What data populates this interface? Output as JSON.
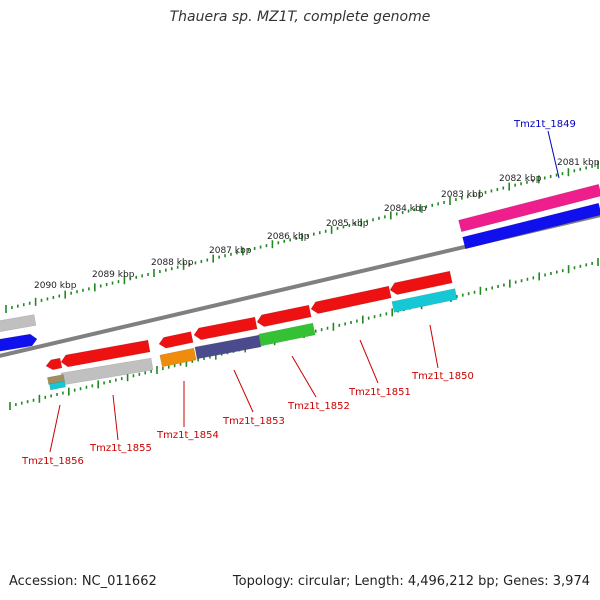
{
  "title": "Thauera sp. MZ1T, complete genome",
  "footer": {
    "accession": "Accession: NC_011662",
    "topology": "Topology: circular; Length: 4,496,212 bp; Genes: 3,974"
  },
  "colors": {
    "red": "#ee1111",
    "grey": "#c0c0c0",
    "blue": "#1010ee",
    "magenta": "#ee1e8c",
    "cyan": "#16c8d6",
    "green": "#34c234",
    "purple": "#4a4a8c",
    "orange": "#f08c0c",
    "tick": "#228822",
    "label_red": "#cc0000",
    "label_blue": "#0000bb",
    "backbone": "#808080"
  },
  "ticks": [
    "2081 kbp",
    "2082 kbp",
    "2083 kbp",
    "2084 kbp",
    "2085 kbp",
    "2086 kbp",
    "2087 kbp",
    "2088 kbp",
    "2089 kbp",
    "2090 kbp"
  ],
  "gene_labels": [
    "Tmz1t_1849",
    "Tmz1t_1850",
    "Tmz1t_1851",
    "Tmz1t_1852",
    "Tmz1t_1853",
    "Tmz1t_1854",
    "Tmz1t_1855",
    "Tmz1t_1856"
  ]
}
